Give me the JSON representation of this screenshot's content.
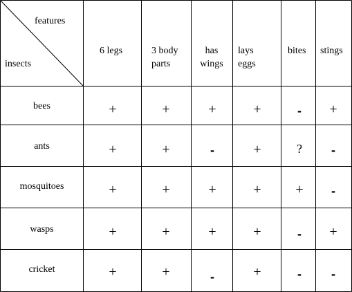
{
  "table": {
    "corner": {
      "top_label": "features",
      "bottom_label": "insects"
    },
    "columns": [
      {
        "label_lines": [
          "6 legs"
        ]
      },
      {
        "label_lines": [
          "3 body",
          "parts"
        ]
      },
      {
        "label_lines": [
          "has",
          "wings"
        ]
      },
      {
        "label_lines": [
          "lays",
          "eggs"
        ]
      },
      {
        "label_lines": [
          "bites"
        ]
      },
      {
        "label_lines": [
          "stings"
        ]
      }
    ],
    "rows": [
      {
        "name": "bees",
        "cells": [
          "+",
          "+",
          "+",
          "+",
          "-",
          "+"
        ]
      },
      {
        "name": "ants",
        "cells": [
          "+",
          "+",
          "-",
          "+",
          "?",
          "-"
        ]
      },
      {
        "name": "mosquitoes",
        "cells": [
          "+",
          "+",
          "+",
          "+",
          "+",
          "-"
        ]
      },
      {
        "name": "wasps",
        "cells": [
          "+",
          "+",
          "+",
          "+",
          "-",
          "+"
        ]
      },
      {
        "name": "cricket",
        "cells": [
          "+",
          "+",
          "-",
          "+",
          "-",
          "-"
        ]
      }
    ]
  }
}
